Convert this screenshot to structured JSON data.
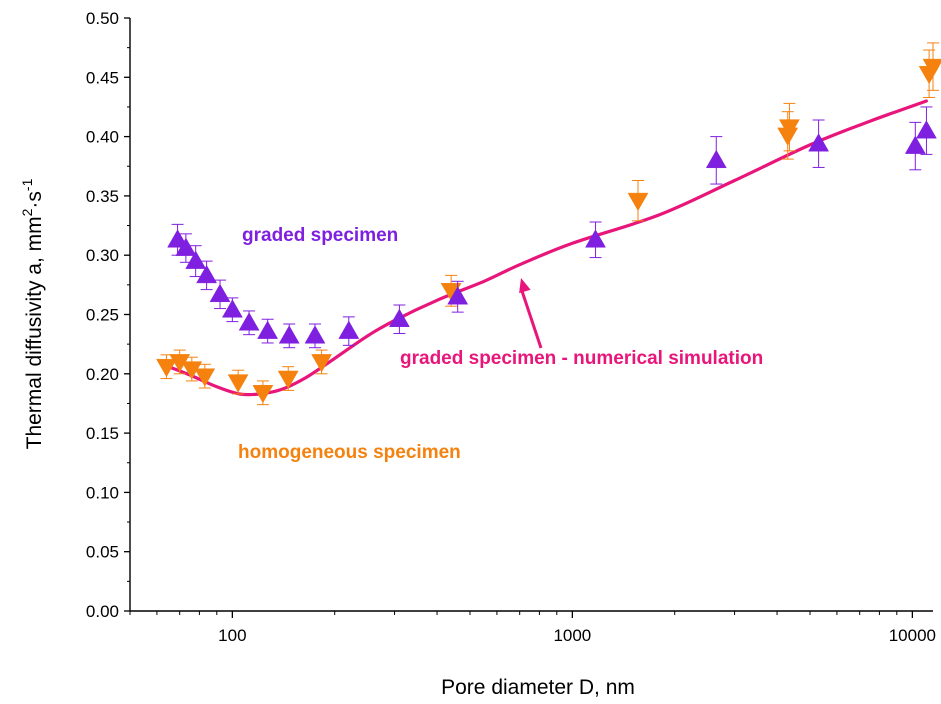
{
  "chart_data": {
    "type": "scatter",
    "xlabel": "Pore diameter D, nm",
    "ylabel": {
      "prefix": "Thermal diffusivity a, mm",
      "sup1": "2",
      "mid": "·s",
      "sup2": "-1"
    },
    "xscale": "log",
    "xlim": [
      50,
      11500
    ],
    "ylim": [
      0,
      0.5
    ],
    "x_ticks": [
      100,
      1000,
      10000
    ],
    "x_tick_labels": [
      "100",
      "1000",
      "10000"
    ],
    "y_ticks": [
      0,
      0.05,
      0.1,
      0.15,
      0.2,
      0.25,
      0.3,
      0.35,
      0.4,
      0.45,
      0.5
    ],
    "y_tick_labels": [
      "0.00",
      "0.05",
      "0.10",
      "0.15",
      "0.20",
      "0.25",
      "0.30",
      "0.35",
      "0.40",
      "0.45",
      "0.50"
    ],
    "grid": false,
    "colors": {
      "graded": "#7f1fe0",
      "homogeneous": "#f5820f",
      "simulation": "#e8157a"
    },
    "annotations": {
      "graded": "graded specimen",
      "homogeneous": "homogeneous specimen",
      "simulation": "graded specimen - numerical simulation"
    },
    "series": [
      {
        "key": "graded",
        "marker": "triangle-up",
        "points": [
          {
            "x": 69,
            "y": 0.313,
            "err": 0.013
          },
          {
            "x": 73,
            "y": 0.306,
            "err": 0.012
          },
          {
            "x": 78,
            "y": 0.295,
            "err": 0.013
          },
          {
            "x": 84,
            "y": 0.283,
            "err": 0.012
          },
          {
            "x": 92,
            "y": 0.267,
            "err": 0.012
          },
          {
            "x": 100,
            "y": 0.254,
            "err": 0.01
          },
          {
            "x": 112,
            "y": 0.243,
            "err": 0.01
          },
          {
            "x": 127,
            "y": 0.236,
            "err": 0.01
          },
          {
            "x": 147,
            "y": 0.232,
            "err": 0.01
          },
          {
            "x": 175,
            "y": 0.232,
            "err": 0.01
          },
          {
            "x": 220,
            "y": 0.236,
            "err": 0.012
          },
          {
            "x": 310,
            "y": 0.246,
            "err": 0.012
          },
          {
            "x": 460,
            "y": 0.265,
            "err": 0.013
          },
          {
            "x": 1170,
            "y": 0.313,
            "err": 0.015
          },
          {
            "x": 2650,
            "y": 0.38,
            "err": 0.02
          },
          {
            "x": 5300,
            "y": 0.394,
            "err": 0.02
          },
          {
            "x": 10200,
            "y": 0.392,
            "err": 0.02
          },
          {
            "x": 11000,
            "y": 0.405,
            "err": 0.02
          }
        ]
      },
      {
        "key": "homogeneous",
        "marker": "triangle-down",
        "points": [
          {
            "x": 64,
            "y": 0.206,
            "err": 0.01
          },
          {
            "x": 70,
            "y": 0.21,
            "err": 0.01
          },
          {
            "x": 76,
            "y": 0.204,
            "err": 0.01
          },
          {
            "x": 83,
            "y": 0.198,
            "err": 0.01
          },
          {
            "x": 104,
            "y": 0.193,
            "err": 0.01
          },
          {
            "x": 123,
            "y": 0.184,
            "err": 0.01
          },
          {
            "x": 146,
            "y": 0.196,
            "err": 0.01
          },
          {
            "x": 183,
            "y": 0.21,
            "err": 0.01
          },
          {
            "x": 440,
            "y": 0.27,
            "err": 0.013
          },
          {
            "x": 1560,
            "y": 0.346,
            "err": 0.017
          },
          {
            "x": 4300,
            "y": 0.401,
            "err": 0.02
          },
          {
            "x": 4350,
            "y": 0.408,
            "err": 0.02
          },
          {
            "x": 11200,
            "y": 0.453,
            "err": 0.02
          },
          {
            "x": 11500,
            "y": 0.459,
            "err": 0.02
          }
        ]
      },
      {
        "key": "simulation",
        "marker": "line",
        "points": [
          {
            "x": 65,
            "y": 0.206
          },
          {
            "x": 75,
            "y": 0.199
          },
          {
            "x": 90,
            "y": 0.189
          },
          {
            "x": 105,
            "y": 0.183
          },
          {
            "x": 120,
            "y": 0.183
          },
          {
            "x": 140,
            "y": 0.187
          },
          {
            "x": 165,
            "y": 0.197
          },
          {
            "x": 200,
            "y": 0.213
          },
          {
            "x": 250,
            "y": 0.232
          },
          {
            "x": 300,
            "y": 0.245
          },
          {
            "x": 400,
            "y": 0.262
          },
          {
            "x": 550,
            "y": 0.278
          },
          {
            "x": 700,
            "y": 0.292
          },
          {
            "x": 1000,
            "y": 0.31
          },
          {
            "x": 1800,
            "y": 0.334
          },
          {
            "x": 3000,
            "y": 0.363
          },
          {
            "x": 5000,
            "y": 0.393
          },
          {
            "x": 7500,
            "y": 0.413
          },
          {
            "x": 11000,
            "y": 0.43
          }
        ]
      }
    ]
  }
}
